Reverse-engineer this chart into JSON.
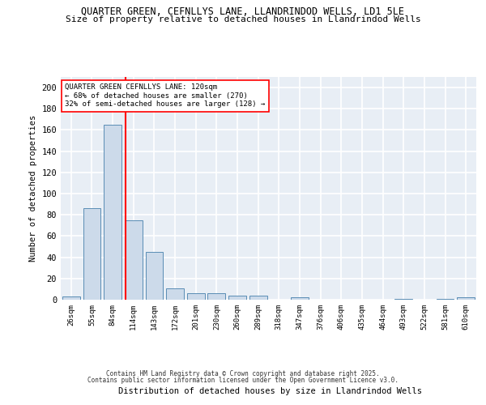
{
  "title_line1": "QUARTER GREEN, CEFNLLYS LANE, LLANDRINDOD WELLS, LD1 5LE",
  "title_line2": "Size of property relative to detached houses in Llandrindod Wells",
  "xlabel": "Distribution of detached houses by size in Llandrindod Wells",
  "ylabel": "Number of detached properties",
  "bin_labels": [
    "26sqm",
    "55sqm",
    "84sqm",
    "114sqm",
    "143sqm",
    "172sqm",
    "201sqm",
    "230sqm",
    "260sqm",
    "289sqm",
    "318sqm",
    "347sqm",
    "376sqm",
    "406sqm",
    "435sqm",
    "464sqm",
    "493sqm",
    "522sqm",
    "581sqm",
    "610sqm"
  ],
  "bar_heights": [
    3,
    86,
    165,
    75,
    45,
    11,
    6,
    6,
    4,
    4,
    0,
    2,
    0,
    0,
    0,
    0,
    1,
    0,
    1,
    2
  ],
  "bar_color": "#ccdaea",
  "bar_edge_color": "#5a8db5",
  "red_line_x": 2.62,
  "annotation_text": "QUARTER GREEN CEFNLLYS LANE: 120sqm\n← 68% of detached houses are smaller (270)\n32% of semi-detached houses are larger (128) →",
  "annotation_box_color": "#ffffff",
  "annotation_box_edge": "#cc0000",
  "ylim": [
    0,
    210
  ],
  "yticks": [
    0,
    20,
    40,
    60,
    80,
    100,
    120,
    140,
    160,
    180,
    200
  ],
  "background_color": "#e8eef5",
  "grid_color": "#ffffff",
  "footer_line1": "Contains HM Land Registry data © Crown copyright and database right 2025.",
  "footer_line2": "Contains public sector information licensed under the Open Government Licence v3.0."
}
